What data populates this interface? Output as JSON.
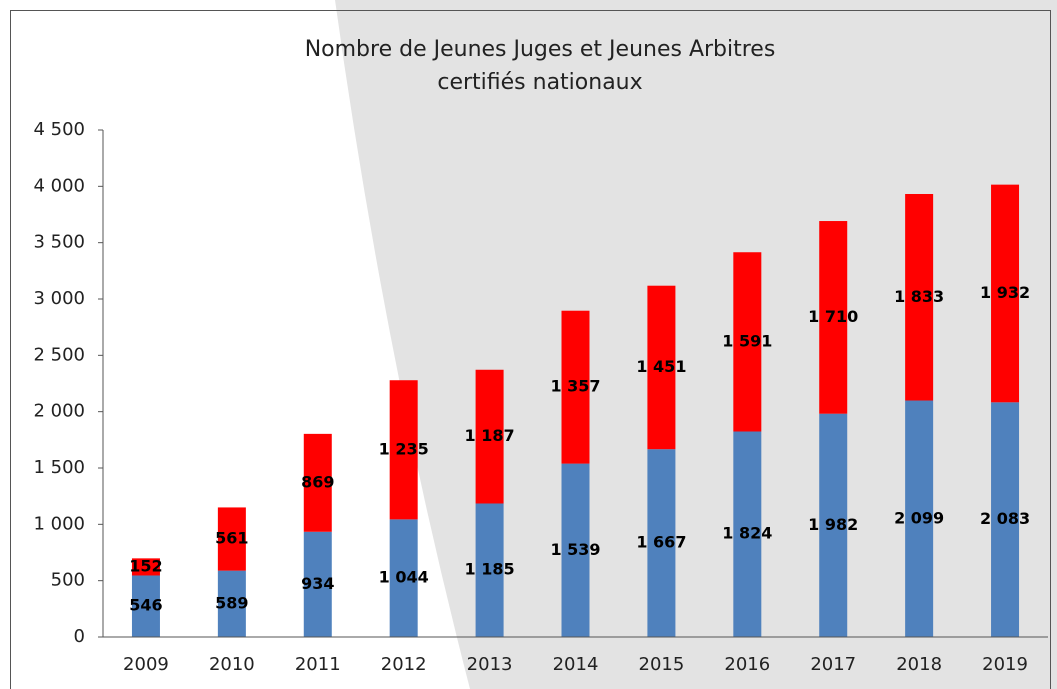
{
  "chart_data": {
    "type": "stacked_bar",
    "title": [
      "Nombre de Jeunes Juges et Jeunes Arbitres",
      "certifiés nationaux"
    ],
    "categories": [
      "2009",
      "2010",
      "2011",
      "2012",
      "2013",
      "2014",
      "2015",
      "2016",
      "2017",
      "2018",
      "2019"
    ],
    "series": [
      {
        "color": "#4f81bd",
        "values": [
          546,
          589,
          934,
          1044,
          1185,
          1539,
          1667,
          1824,
          1982,
          2099,
          2083
        ],
        "value_labels": [
          "546",
          "589",
          "934",
          "1 044",
          "1 185",
          "1 539",
          "1 667",
          "1 824",
          "1 982",
          "2 099",
          "2 083"
        ]
      },
      {
        "color": "#ff0000",
        "values": [
          152,
          561,
          869,
          1235,
          1187,
          1357,
          1451,
          1591,
          1710,
          1833,
          1932
        ],
        "value_labels": [
          "152",
          "561",
          "869",
          "1 235",
          "1 187",
          "1 357",
          "1 451",
          "1 591",
          "1 710",
          "1 833",
          "1 932"
        ]
      }
    ],
    "ylim": [
      0,
      4500
    ],
    "yticks": [
      0,
      500,
      {
        "value": 1000,
        "label": "1 000"
      },
      {
        "value": 1500,
        "label": "1 500"
      },
      {
        "value": 2000,
        "label": "2 000"
      },
      {
        "value": 2500,
        "label": "2 500"
      },
      {
        "value": 3000,
        "label": "3 000"
      },
      {
        "value": 3500,
        "label": "3 500"
      },
      {
        "value": 4000,
        "label": "4 000"
      },
      {
        "value": 4500,
        "label": "4 500"
      }
    ],
    "grid": false
  }
}
